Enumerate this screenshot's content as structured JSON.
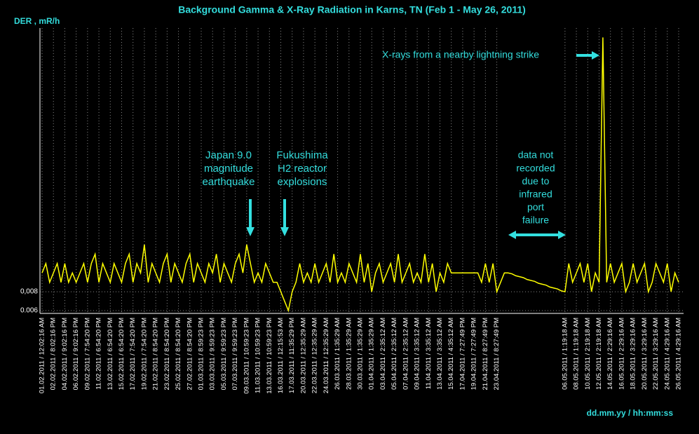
{
  "chart_data": {
    "type": "line",
    "title": "Background Gamma & X-Ray Radiation in Karns, TN (Feb 1 - May 26, 2011)",
    "y_label": "DER , mR/h",
    "x_label": "dd.mm.yy / hh:mm:ss",
    "annotations": [
      {
        "lines": [
          "Japan  9.0",
          "magnitude",
          "earthquake"
        ]
      },
      {
        "lines": [
          "Fukushima",
          "H2 reactor",
          "explosions"
        ]
      },
      {
        "lines": [
          "data not",
          "recorded",
          "due to",
          "infrared",
          "port",
          "failure"
        ]
      },
      {
        "lines": [
          "X-rays from a nearby lightning strike"
        ]
      }
    ],
    "categories": [
      "01.02.2011 / 12:02:16 AM",
      null,
      null,
      "02.02.2011 / 8:02:16 PM",
      null,
      null,
      "04.02.2011 / 9:02:16 PM",
      null,
      null,
      "06.02.2011 / 9:02:16 PM",
      null,
      null,
      "09.02.2011 / 7:54:20 PM",
      null,
      null,
      "11.02.2011 / 6:54:20 PM",
      null,
      null,
      "13.02.2011 / 6:54:20 PM",
      null,
      null,
      "15.02.2011 / 6:54:20 PM",
      null,
      null,
      "17.02.2011 / 7:54:20 PM",
      null,
      null,
      "19.02.2011 / 7:54:20 PM",
      null,
      null,
      "21.02.2011 / 8:54:20 PM",
      null,
      null,
      "23.02.2011 / 8:54:20 PM",
      null,
      null,
      "25.02.2011 / 8:54:20 PM",
      null,
      null,
      "27.02.2011 / 8:54:20 PM",
      null,
      null,
      "01.03.2011 / 8:59:23 PM",
      null,
      null,
      "03.03.2011 / 9:59:23 PM",
      null,
      null,
      "05.03.2011 / 9:59:23 PM",
      null,
      null,
      "07.03.2011 / 9:59:23 PM",
      null,
      null,
      "09.03.2011 / 10:59:23 PM",
      null,
      null,
      "11.03.2011 / 10:59:23 PM",
      null,
      null,
      "13.03.2011 / 10:59:23 PM",
      null,
      null,
      "16.03.2011 / 12:15:53 AM",
      null,
      null,
      "17.03.2011 / 11:35:29 PM",
      null,
      null,
      "20.03.2011 / 12:35:29 AM",
      null,
      null,
      "22.03.2011 / 12:35:29 AM",
      null,
      null,
      "24.03.2011 / 12:35:29 AM",
      null,
      null,
      "26.03.2011 / 1:35:29 AM",
      null,
      null,
      "28.03.2011 / 1:35:29 AM",
      null,
      null,
      "30.03.2011 / 1:35:29 AM",
      null,
      null,
      "01.04.2011 / 1:35:29 AM",
      null,
      null,
      "03.04.2011 / 2:35:12 AM",
      null,
      null,
      "05.04.2011 / 2:35:12 AM",
      null,
      null,
      "07.04.2011 / 2:35:12 AM",
      null,
      null,
      "09.04.2011 / 3:35:12 AM",
      null,
      null,
      "11.04.2011 / 3:35:12 AM",
      null,
      null,
      "13.04.2011 / 3:35:12 AM",
      null,
      null,
      "15.04.2011 / 4:35:12 AM",
      null,
      null,
      "17.04.2011 / 7:27:49 PM",
      null,
      null,
      "19.04.2011 / 7:27:49 PM",
      null,
      null,
      "21.04.2011 / 8:27:49 PM",
      null,
      null,
      "23.04.2011 / 8:27:49 PM",
      null,
      null,
      null,
      null,
      null,
      null,
      null,
      null,
      null,
      null,
      null,
      null,
      null,
      null,
      null,
      null,
      null,
      "06.05.2011 / 1:19:18 AM",
      null,
      null,
      "08.05.2011 / 1:19:18 AM",
      null,
      null,
      "10.05.2011 / 2:19:18 AM",
      null,
      null,
      "12.05.2011 / 2:19:18 AM",
      null,
      null,
      "14.05.2011 / 2:29:16 AM",
      null,
      null,
      "16.05.2011 / 2:29:16 AM",
      null,
      null,
      "18.05.2011 / 3:29:16 AM",
      null,
      null,
      "20.05.2011 / 3:29:16 AM",
      null,
      null,
      "22.05.2011 / 3:29:16 AM",
      null,
      null,
      "24.05.2011 / 4:29:16 AM",
      null,
      null,
      "26.05.2011 / 4:29:16 AM"
    ],
    "series": [
      {
        "color": "#ffff00",
        "values": [
          0.01,
          0.011,
          0.009,
          0.01,
          0.011,
          0.009,
          0.011,
          0.009,
          0.01,
          0.009,
          0.01,
          0.011,
          0.009,
          0.011,
          0.012,
          0.009,
          0.011,
          0.01,
          0.009,
          0.011,
          0.01,
          0.009,
          0.011,
          0.012,
          0.009,
          0.011,
          0.01,
          0.013,
          0.009,
          0.011,
          0.01,
          0.009,
          0.011,
          0.012,
          0.009,
          0.011,
          0.01,
          0.009,
          0.011,
          0.012,
          0.009,
          0.011,
          0.01,
          0.009,
          0.011,
          0.01,
          0.012,
          0.009,
          0.011,
          0.01,
          0.009,
          0.011,
          0.012,
          0.01,
          0.013,
          0.011,
          0.009,
          0.01,
          0.009,
          0.011,
          0.01,
          0.009,
          0.009,
          0.008,
          0.007,
          0.006,
          0.008,
          0.009,
          0.011,
          0.009,
          0.01,
          0.009,
          0.011,
          0.009,
          0.01,
          0.011,
          0.009,
          0.012,
          0.009,
          0.01,
          0.009,
          0.011,
          0.01,
          0.009,
          0.012,
          0.009,
          0.011,
          0.008,
          0.01,
          0.011,
          0.009,
          0.01,
          0.011,
          0.009,
          0.012,
          0.009,
          0.01,
          0.011,
          0.009,
          0.01,
          0.009,
          0.012,
          0.009,
          0.011,
          0.008,
          0.01,
          0.009,
          0.011,
          0.01,
          0.01,
          0.01,
          0.01,
          0.01,
          0.01,
          0.01,
          0.01,
          0.009,
          0.011,
          0.009,
          0.011,
          0.008,
          0.009,
          0.01,
          0.01,
          0.0099,
          0.0097,
          0.0096,
          0.0095,
          0.0093,
          0.0092,
          0.0091,
          0.0089,
          0.0088,
          0.0087,
          0.0085,
          0.0084,
          0.0083,
          0.0081,
          0.008,
          0.011,
          0.009,
          0.01,
          0.011,
          0.009,
          0.011,
          0.008,
          0.01,
          0.009,
          0.035,
          0.009,
          0.011,
          0.009,
          0.01,
          0.011,
          0.008,
          0.009,
          0.011,
          0.009,
          0.01,
          0.011,
          0.008,
          0.009,
          0.011,
          0.01,
          0.009,
          0.011,
          0.008,
          0.01,
          0.009
        ]
      }
    ],
    "ylim": [
      0.0057,
      0.036
    ],
    "yticks": [
      0.006,
      {
        "value": 0.008,
        "label": "0,008"
      }
    ],
    "grid": true
  }
}
